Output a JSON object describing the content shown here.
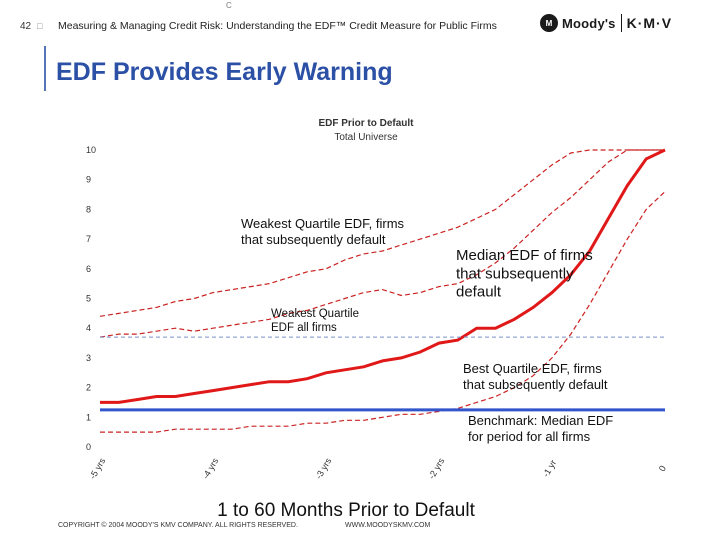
{
  "header": {
    "slide_number": "42",
    "bullet": "□",
    "text": "Measuring & Managing Credit Risk: Understanding the EDF™ Credit Measure for Public Firms",
    "top_mark": "C"
  },
  "logo": {
    "mark": "M",
    "brand": "Moody's",
    "partner": "K·M·V"
  },
  "title": "EDF Provides Early Warning",
  "chart_data": {
    "type": "line",
    "title": "EDF Prior to Default",
    "subtitle": "Total Universe",
    "xlabel": "1 to 60 Months Prior to Default",
    "ylabel": "",
    "ylim": [
      0,
      10
    ],
    "yticks": [
      "0",
      "1",
      "2",
      "3",
      "4",
      "5",
      "6",
      "7",
      "8",
      "9",
      "10"
    ],
    "xlim": [
      -60,
      0
    ],
    "xticks": [
      {
        "x": -60,
        "label": "-5 yrs"
      },
      {
        "x": -48,
        "label": "-4 yrs"
      },
      {
        "x": -36,
        "label": "-3 yrs"
      },
      {
        "x": -24,
        "label": "-2 yrs"
      },
      {
        "x": -12,
        "label": "-1 yr"
      },
      {
        "x": 0,
        "label": "0"
      }
    ],
    "grid": false,
    "series": [
      {
        "color": "#cc2222",
        "style": "dashed",
        "points": [
          [
            -60,
            4.4
          ],
          [
            -58,
            4.5
          ],
          [
            -56,
            4.6
          ],
          [
            -54,
            4.7
          ],
          [
            -52,
            4.9
          ],
          [
            -50,
            5.0
          ],
          [
            -48,
            5.2
          ],
          [
            -46,
            5.3
          ],
          [
            -44,
            5.4
          ],
          [
            -42,
            5.5
          ],
          [
            -40,
            5.7
          ],
          [
            -38,
            5.9
          ],
          [
            -36,
            6.0
          ],
          [
            -34,
            6.3
          ],
          [
            -32,
            6.5
          ],
          [
            -30,
            6.6
          ],
          [
            -28,
            6.8
          ],
          [
            -26,
            7.0
          ],
          [
            -24,
            7.2
          ],
          [
            -22,
            7.4
          ],
          [
            -20,
            7.7
          ],
          [
            -18,
            8.0
          ],
          [
            -16,
            8.5
          ],
          [
            -14,
            9.0
          ],
          [
            -12,
            9.5
          ],
          [
            -10,
            9.9
          ],
          [
            -8,
            10.0
          ],
          [
            -6,
            10.0
          ],
          [
            -4,
            10.0
          ],
          [
            -2,
            10.0
          ],
          [
            0,
            10.0
          ]
        ]
      },
      {
        "color": "#cc2222",
        "style": "dashed",
        "points": [
          [
            -60,
            3.7
          ],
          [
            -58,
            3.8
          ],
          [
            -56,
            3.8
          ],
          [
            -54,
            3.9
          ],
          [
            -52,
            4.0
          ],
          [
            -50,
            3.9
          ],
          [
            -48,
            4.0
          ],
          [
            -46,
            4.1
          ],
          [
            -44,
            4.2
          ],
          [
            -42,
            4.3
          ],
          [
            -40,
            4.5
          ],
          [
            -38,
            4.6
          ],
          [
            -36,
            4.8
          ],
          [
            -34,
            5.0
          ],
          [
            -32,
            5.2
          ],
          [
            -30,
            5.3
          ],
          [
            -28,
            5.1
          ],
          [
            -26,
            5.2
          ],
          [
            -24,
            5.4
          ],
          [
            -22,
            5.5
          ],
          [
            -20,
            5.8
          ],
          [
            -18,
            6.2
          ],
          [
            -16,
            6.7
          ],
          [
            -14,
            7.3
          ],
          [
            -12,
            7.9
          ],
          [
            -10,
            8.4
          ],
          [
            -8,
            9.0
          ],
          [
            -6,
            9.6
          ],
          [
            -4,
            10.0
          ],
          [
            -2,
            10.0
          ],
          [
            0,
            10.0
          ]
        ]
      },
      {
        "color": "#e01818",
        "style": "solid",
        "points": [
          [
            -60,
            1.5
          ],
          [
            -58,
            1.5
          ],
          [
            -56,
            1.6
          ],
          [
            -54,
            1.7
          ],
          [
            -52,
            1.7
          ],
          [
            -50,
            1.8
          ],
          [
            -48,
            1.9
          ],
          [
            -46,
            2.0
          ],
          [
            -44,
            2.1
          ],
          [
            -42,
            2.2
          ],
          [
            -40,
            2.2
          ],
          [
            -38,
            2.3
          ],
          [
            -36,
            2.5
          ],
          [
            -34,
            2.6
          ],
          [
            -32,
            2.7
          ],
          [
            -30,
            2.9
          ],
          [
            -28,
            3.0
          ],
          [
            -26,
            3.2
          ],
          [
            -24,
            3.5
          ],
          [
            -22,
            3.6
          ],
          [
            -20,
            4.0
          ],
          [
            -18,
            4.0
          ],
          [
            -16,
            4.3
          ],
          [
            -14,
            4.7
          ],
          [
            -12,
            5.2
          ],
          [
            -10,
            5.8
          ],
          [
            -8,
            6.6
          ],
          [
            -6,
            7.7
          ],
          [
            -4,
            8.8
          ],
          [
            -2,
            9.7
          ],
          [
            0,
            10.0
          ]
        ]
      },
      {
        "color": "#cc2222",
        "style": "dashed",
        "points": [
          [
            -60,
            0.5
          ],
          [
            -58,
            0.5
          ],
          [
            -56,
            0.5
          ],
          [
            -54,
            0.5
          ],
          [
            -52,
            0.6
          ],
          [
            -50,
            0.6
          ],
          [
            -48,
            0.6
          ],
          [
            -46,
            0.6
          ],
          [
            -44,
            0.7
          ],
          [
            -42,
            0.7
          ],
          [
            -40,
            0.7
          ],
          [
            -38,
            0.8
          ],
          [
            -36,
            0.8
          ],
          [
            -34,
            0.9
          ],
          [
            -32,
            0.9
          ],
          [
            -30,
            1.0
          ],
          [
            -28,
            1.1
          ],
          [
            -26,
            1.1
          ],
          [
            -24,
            1.2
          ],
          [
            -22,
            1.3
          ],
          [
            -20,
            1.5
          ],
          [
            -18,
            1.7
          ],
          [
            -16,
            2.0
          ],
          [
            -14,
            2.4
          ],
          [
            -12,
            3.0
          ],
          [
            -10,
            3.8
          ],
          [
            -8,
            4.8
          ],
          [
            -6,
            5.9
          ],
          [
            -4,
            7.0
          ],
          [
            -2,
            8.0
          ],
          [
            0,
            8.6
          ]
        ]
      },
      {
        "color": "#7a90c8",
        "style": "dashed-thin",
        "points": [
          [
            -60,
            3.7
          ],
          [
            0,
            3.7
          ]
        ]
      },
      {
        "color": "#3355cc",
        "style": "solid-thick",
        "points": [
          [
            -60,
            1.25
          ],
          [
            0,
            1.25
          ]
        ]
      }
    ],
    "annotations": {
      "weakest_default": "Weakest Quartile EDF, firms that subsequently default",
      "weakest_all": "Weakest Quartile EDF all firms",
      "median_default": "Median EDF of firms that subsequently default",
      "best_default": "Best Quartile EDF, firms that subsequently default",
      "benchmark": "Benchmark:  Median EDF for period for all firms"
    }
  },
  "footer": {
    "copyright": "COPYRIGHT © 2004 MOODY'S KMV COMPANY. ALL RIGHTS RESERVED.",
    "website": "WWW.MOODYSKMV.COM"
  }
}
